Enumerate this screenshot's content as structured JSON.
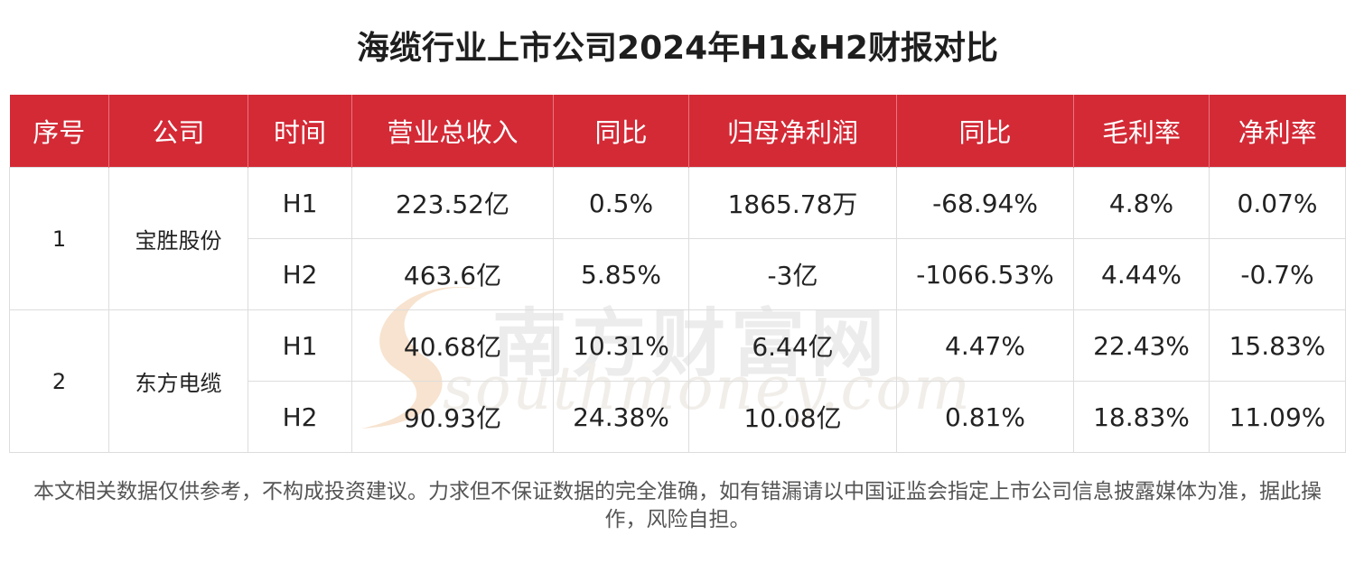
{
  "title": "海缆行业上市公司2024年H1&H2财报对比",
  "table": {
    "headers": [
      "序号",
      "公司",
      "时间",
      "营业总收入",
      "同比",
      "归母净利润",
      "同比",
      "毛利率",
      "净利率"
    ],
    "groups": [
      {
        "index": "1",
        "company": "宝胜股份",
        "rows": [
          {
            "period": "H1",
            "revenue": "223.52亿",
            "revenue_yoy": "0.5%",
            "net_profit": "1865.78万",
            "profit_yoy": "-68.94%",
            "gross_margin": "4.8%",
            "net_margin": "0.07%"
          },
          {
            "period": "H2",
            "revenue": "463.6亿",
            "revenue_yoy": "5.85%",
            "net_profit": "-3亿",
            "profit_yoy": "-1066.53%",
            "gross_margin": "4.44%",
            "net_margin": "-0.7%"
          }
        ]
      },
      {
        "index": "2",
        "company": "东方电缆",
        "rows": [
          {
            "period": "H1",
            "revenue": "40.68亿",
            "revenue_yoy": "10.31%",
            "net_profit": "6.44亿",
            "profit_yoy": "4.47%",
            "gross_margin": "22.43%",
            "net_margin": "15.83%"
          },
          {
            "period": "H2",
            "revenue": "90.93亿",
            "revenue_yoy": "24.38%",
            "net_profit": "10.08亿",
            "profit_yoy": "0.81%",
            "gross_margin": "18.83%",
            "net_margin": "11.09%"
          }
        ]
      }
    ]
  },
  "watermark": {
    "cn": "南方财富网",
    "en": "southmoney.com"
  },
  "footnote": "本文相关数据仅供参考，不构成投资建议。力求但不保证数据的完全准确，如有错漏请以中国证监会指定上市公司信息披露媒体为准，据此操作，风险自担。",
  "colors": {
    "header_bg": "#d32a36",
    "header_text": "#ffffff",
    "border": "#dddddd"
  }
}
